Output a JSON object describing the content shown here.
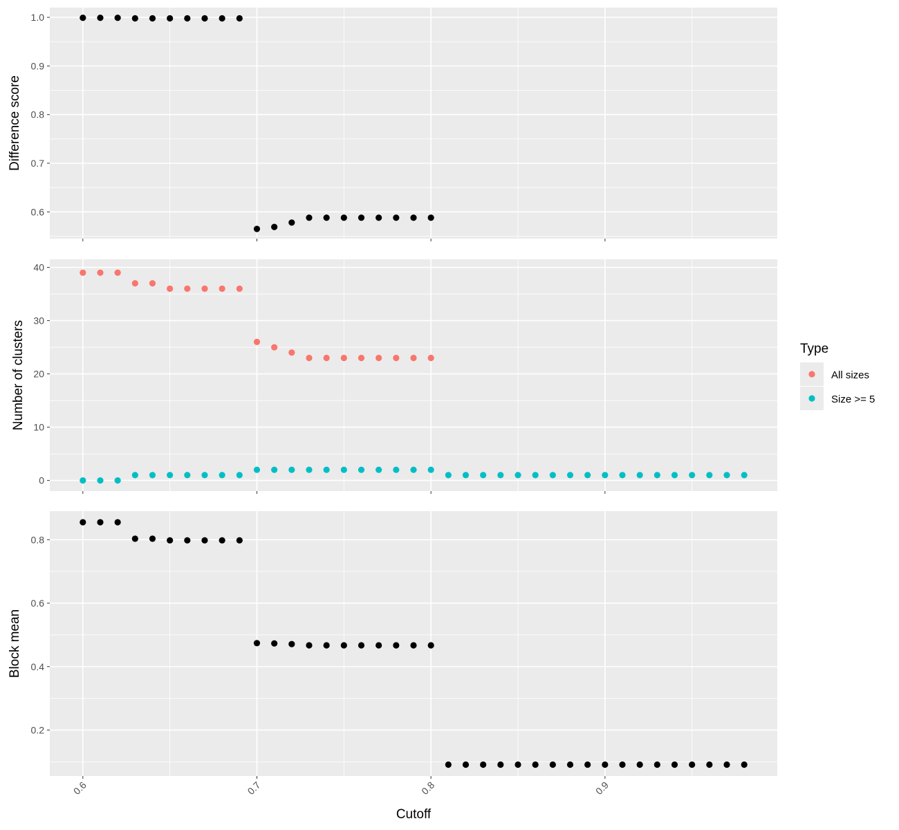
{
  "chart_data": {
    "type": "scatter",
    "xlabel": "Cutoff",
    "x_ticks": [
      "0.6",
      "0.7",
      "0.8",
      "0.9"
    ],
    "xlim": [
      0.581,
      0.999
    ],
    "panels": [
      {
        "ylabel": "Difference score",
        "ylim": [
          0.545,
          1.02
        ],
        "y_ticks": [
          "0.6",
          "0.7",
          "0.8",
          "0.9",
          "1.0"
        ],
        "y_tick_values": [
          0.6,
          0.7,
          0.8,
          0.9,
          1.0
        ],
        "series": [
          {
            "color": "#000000",
            "x": [
              0.6,
              0.61,
              0.62,
              0.63,
              0.64,
              0.65,
              0.66,
              0.67,
              0.68,
              0.69,
              0.7,
              0.71,
              0.72,
              0.73,
              0.74,
              0.75,
              0.76,
              0.77,
              0.78,
              0.79,
              0.8
            ],
            "y": [
              0.999,
              0.999,
              0.999,
              0.998,
              0.998,
              0.998,
              0.998,
              0.998,
              0.998,
              0.998,
              0.565,
              0.569,
              0.578,
              0.588,
              0.588,
              0.588,
              0.588,
              0.588,
              0.588,
              0.588,
              0.588
            ]
          }
        ]
      },
      {
        "ylabel": "Number of clusters",
        "ylim": [
          -2,
          41.5
        ],
        "y_ticks": [
          "0",
          "10",
          "20",
          "30",
          "40"
        ],
        "y_tick_values": [
          0,
          10,
          20,
          30,
          40
        ],
        "series": [
          {
            "name": "All sizes",
            "color": "#F8766D",
            "x": [
              0.6,
              0.61,
              0.62,
              0.63,
              0.64,
              0.65,
              0.66,
              0.67,
              0.68,
              0.69,
              0.7,
              0.71,
              0.72,
              0.73,
              0.74,
              0.75,
              0.76,
              0.77,
              0.78,
              0.79,
              0.8
            ],
            "y": [
              39,
              39,
              39,
              37,
              37,
              36,
              36,
              36,
              36,
              36,
              26,
              25,
              24,
              23,
              23,
              23,
              23,
              23,
              23,
              23,
              23
            ]
          },
          {
            "name": "Size >= 5",
            "color": "#00BFC4",
            "x": [
              0.6,
              0.61,
              0.62,
              0.63,
              0.64,
              0.65,
              0.66,
              0.67,
              0.68,
              0.69,
              0.7,
              0.71,
              0.72,
              0.73,
              0.74,
              0.75,
              0.76,
              0.77,
              0.78,
              0.79,
              0.8,
              0.81,
              0.82,
              0.83,
              0.84,
              0.85,
              0.86,
              0.87,
              0.88,
              0.89,
              0.9,
              0.91,
              0.92,
              0.93,
              0.94,
              0.95,
              0.96,
              0.97,
              0.98
            ],
            "y": [
              0,
              0,
              0,
              1,
              1,
              1,
              1,
              1,
              1,
              1,
              2,
              2,
              2,
              2,
              2,
              2,
              2,
              2,
              2,
              2,
              2,
              1,
              1,
              1,
              1,
              1,
              1,
              1,
              1,
              1,
              1,
              1,
              1,
              1,
              1,
              1,
              1,
              1,
              1
            ]
          }
        ]
      },
      {
        "ylabel": "Block mean",
        "ylim": [
          0.055,
          0.89
        ],
        "y_ticks": [
          "0.2",
          "0.4",
          "0.6",
          "0.8"
        ],
        "y_tick_values": [
          0.2,
          0.4,
          0.6,
          0.8
        ],
        "series": [
          {
            "color": "#000000",
            "x": [
              0.6,
              0.61,
              0.62,
              0.63,
              0.64,
              0.65,
              0.66,
              0.67,
              0.68,
              0.69,
              0.7,
              0.71,
              0.72,
              0.73,
              0.74,
              0.75,
              0.76,
              0.77,
              0.78,
              0.79,
              0.8,
              0.81,
              0.82,
              0.83,
              0.84,
              0.85,
              0.86,
              0.87,
              0.88,
              0.89,
              0.9,
              0.91,
              0.92,
              0.93,
              0.94,
              0.95,
              0.96,
              0.97,
              0.98
            ],
            "y": [
              0.855,
              0.855,
              0.855,
              0.803,
              0.803,
              0.798,
              0.798,
              0.798,
              0.798,
              0.798,
              0.474,
              0.473,
              0.471,
              0.467,
              0.467,
              0.467,
              0.467,
              0.467,
              0.467,
              0.467,
              0.467,
              0.091,
              0.091,
              0.091,
              0.091,
              0.091,
              0.091,
              0.091,
              0.091,
              0.091,
              0.091,
              0.091,
              0.091,
              0.091,
              0.091,
              0.091,
              0.091,
              0.091,
              0.091
            ]
          }
        ]
      }
    ],
    "legend": {
      "title": "Type",
      "position": "right",
      "items": [
        {
          "label": "All sizes",
          "color": "#F8766D"
        },
        {
          "label": "Size >= 5",
          "color": "#00BFC4"
        }
      ]
    },
    "grid": true,
    "panel_background": "#EBEBEB",
    "grid_color": "#FFFFFF"
  }
}
